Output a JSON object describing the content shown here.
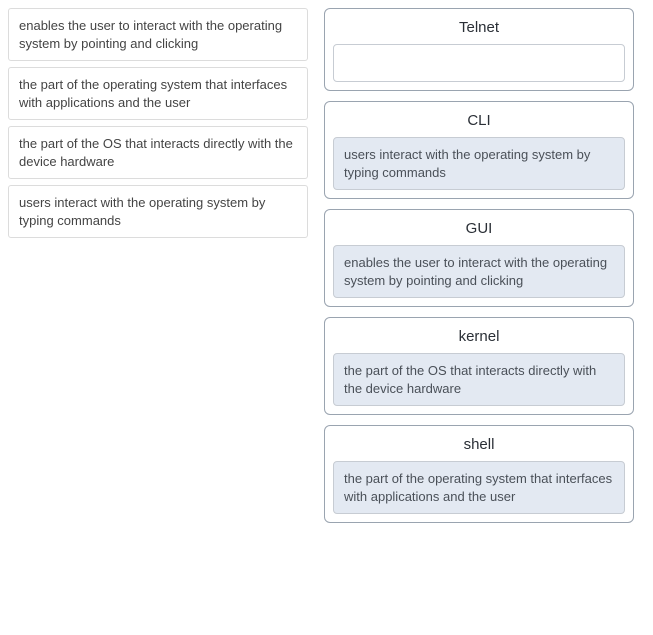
{
  "type": "matching-drag-drop",
  "colors": {
    "page_bg": "#ffffff",
    "source_border": "#dcdcdc",
    "target_border": "#9aa4b0",
    "dropzone_border": "#c7ccd3",
    "dropzone_filled_bg": "#e3e9f2",
    "text": "#333333",
    "title_text": "#2a2f36"
  },
  "typography": {
    "body_fontsize": 13,
    "title_fontsize": 15,
    "font_family": "Arial"
  },
  "source_items": [
    "enables the user to interact with the operating system by pointing and clicking",
    "the part of the operating system that interfaces with applications and the user",
    "the part of the OS that interacts directly with the device hardware",
    "users interact with the operating system by typing commands"
  ],
  "targets": [
    {
      "title": "Telnet",
      "answer": ""
    },
    {
      "title": "CLI",
      "answer": "users interact with the operating system by typing commands"
    },
    {
      "title": "GUI",
      "answer": "enables the user to interact with the operating system by pointing and clicking"
    },
    {
      "title": "kernel",
      "answer": "the part of the OS that interacts directly with the device hardware"
    },
    {
      "title": "shell",
      "answer": "the part of the operating system that interfaces with applications and the user"
    }
  ]
}
